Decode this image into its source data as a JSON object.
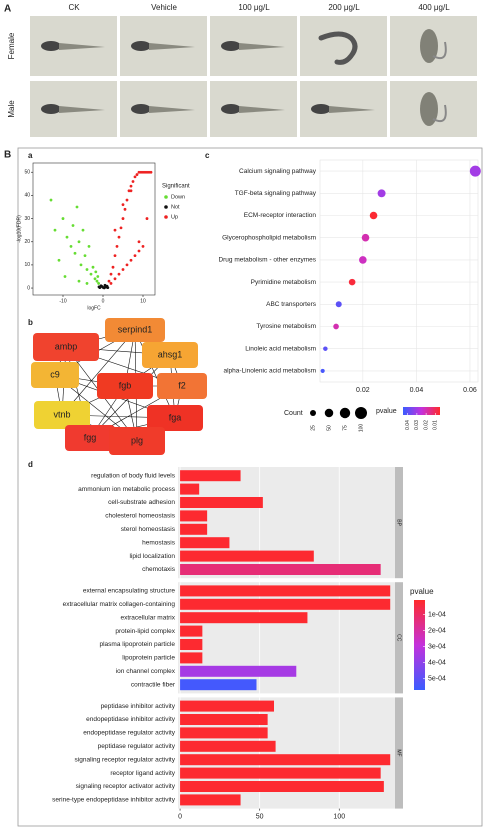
{
  "panel_a": {
    "label": "A",
    "columns": [
      "CK",
      "Vehicle",
      "100 μg/L",
      "200 μg/L",
      "400 μg/L"
    ],
    "rows": [
      "Female",
      "Male"
    ]
  },
  "panel_b": {
    "label": "B"
  },
  "network": {
    "label": "b",
    "nodes": [
      {
        "label": "serpind1",
        "color": "#f28a35"
      },
      {
        "label": "ambp",
        "color": "#f0432e"
      },
      {
        "label": "ahsg1",
        "color": "#f6a533"
      },
      {
        "label": "c9",
        "color": "#f3b534"
      },
      {
        "label": "fgb",
        "color": "#f03a22"
      },
      {
        "label": "f2",
        "color": "#f27435"
      },
      {
        "label": "vtnb",
        "color": "#efd233"
      },
      {
        "label": "fga",
        "color": "#ef3225"
      },
      {
        "label": "fgg",
        "color": "#f03a2f"
      },
      {
        "label": "plg",
        "color": "#f03b2a"
      }
    ]
  },
  "chart_data": [
    {
      "type": "scatter",
      "label": "a",
      "xlabel": "logFC",
      "ylabel": "-log10(FDR)",
      "legend_title": "Significant",
      "xlim": [
        -17.5,
        13
      ],
      "ylim": [
        -3,
        54
      ],
      "xticks": [
        -10,
        0,
        10
      ],
      "yticks": [
        0,
        10,
        20,
        30,
        40,
        50
      ],
      "series": [
        {
          "name": "Down",
          "color": "#66dd33",
          "x": [
            -13,
            -12,
            -11,
            -10,
            -9,
            -8,
            -7.5,
            -7,
            -6.5,
            -6,
            -5.5,
            -5,
            -4.5,
            -4,
            -3.5,
            -3,
            -2.5,
            -2,
            -1.8,
            -1.5,
            -1.3,
            -1.1,
            -9.5,
            -6,
            -4
          ],
          "values": [
            38,
            25,
            12,
            30,
            22,
            18,
            27,
            15,
            35,
            20,
            10,
            25,
            14,
            8,
            18,
            6,
            9,
            4,
            7,
            3,
            5,
            2,
            5,
            3,
            2
          ]
        },
        {
          "name": "Not",
          "color": "#111111",
          "x": [
            -1,
            -0.5,
            0,
            0.5,
            1,
            -0.8,
            0.3,
            0.8,
            -0.3,
            1.2
          ],
          "values": [
            0.5,
            1,
            0.3,
            1.2,
            0.8,
            0.2,
            0.1,
            0.4,
            0.7,
            0.2
          ]
        },
        {
          "name": "Up",
          "color": "#ee2222",
          "x": [
            1.5,
            2,
            2.5,
            3,
            3.5,
            4,
            4.5,
            5,
            5.5,
            6,
            6.5,
            7,
            7.5,
            8,
            8.5,
            9,
            9.5,
            10,
            10.5,
            11,
            11.5,
            12,
            2,
            3,
            4,
            5,
            6,
            7,
            8,
            9,
            10,
            3,
            5,
            7,
            9,
            11
          ],
          "values": [
            3,
            6,
            9,
            14,
            18,
            22,
            26,
            30,
            34,
            38,
            42,
            44,
            46,
            48,
            49,
            50,
            50,
            50,
            50,
            50,
            50,
            50,
            2,
            4,
            6,
            8,
            10,
            12,
            14,
            16,
            18,
            25,
            36,
            42,
            20,
            30
          ]
        }
      ]
    },
    {
      "type": "dot",
      "label": "c",
      "categories": [
        "Calcium signaling pathway",
        "TGF-beta signaling pathway",
        "ECM-receptor interaction",
        "Glycerophospholipid metabolism",
        "Drug metabolism - other enzymes",
        "Pyrimidine metabolism",
        "ABC transporters",
        "Tyrosine metabolism",
        "Linoleic acid metabolism",
        "alpha-Linolenic acid metabolism"
      ],
      "values": [
        0.062,
        0.027,
        0.024,
        0.021,
        0.02,
        0.016,
        0.011,
        0.01,
        0.006,
        0.005
      ],
      "counts": [
        84,
        44,
        40,
        40,
        40,
        30,
        25,
        22,
        14,
        12
      ],
      "pvalues": [
        0.03,
        0.03,
        0.006,
        0.02,
        0.022,
        0.007,
        0.04,
        0.02,
        0.04,
        0.043
      ],
      "xlim": [
        0.004,
        0.063
      ],
      "xticks": [
        0.02,
        0.04,
        0.06
      ],
      "size_legend": {
        "title": "Count",
        "values": [
          25,
          50,
          75,
          100
        ]
      },
      "color_legend": {
        "title": "pvalue",
        "ticks": [
          0.04,
          0.03,
          0.02,
          0.01
        ],
        "range": [
          0.005,
          0.045
        ],
        "colors": [
          "#ff2a2a",
          "#c431dc",
          "#3a5cff"
        ]
      }
    },
    {
      "type": "bar",
      "label": "d",
      "xlim": [
        -1.3,
        135
      ],
      "xticks": [
        0,
        50,
        100
      ],
      "facets": [
        {
          "name": "BP",
          "categories": [
            "regulation of body fluid levels",
            "ammonium ion metabolic process",
            "cell-substrate adhesion",
            "cholesterol homeostasis",
            "sterol homeostasis",
            "hemostasis",
            "lipid localization",
            "chemotaxis"
          ],
          "values": [
            38,
            12,
            52,
            17,
            17,
            31,
            84,
            126
          ],
          "pvalues": [
            2e-05,
            2e-05,
            2e-05,
            2e-05,
            2e-05,
            2e-05,
            2e-05,
            0.00013
          ]
        },
        {
          "name": "CC",
          "categories": [
            "external encapsulating structure",
            "extracellular matrix collagen-containing",
            "extracellular matrix",
            "protein-lipid complex",
            "plasma lipoprotein particle",
            "lipoprotein particle",
            "ion channel complex",
            "contractile fiber"
          ],
          "values": [
            132,
            132,
            80,
            14,
            14,
            14,
            73,
            48
          ],
          "pvalues": [
            2e-05,
            2e-05,
            2e-05,
            2e-05,
            2e-05,
            2e-05,
            0.00035,
            0.00055
          ]
        },
        {
          "name": "MF",
          "categories": [
            "peptidase inhibitor activity",
            "endopeptidase inhibitor activity",
            "endopeptidase regulator activity",
            "peptidase regulator activity",
            "signaling receptor regulator activity",
            "receptor ligand activity",
            "signaling receptor activator activity",
            "serine-type endopeptidase inhibitor activity"
          ],
          "values": [
            59,
            55,
            55,
            60,
            132,
            126,
            128,
            38
          ],
          "pvalues": [
            2e-05,
            2e-05,
            2e-05,
            2e-05,
            2e-05,
            2e-05,
            2e-05,
            2e-05
          ]
        }
      ],
      "color_legend": {
        "title": "pvalue",
        "ticks": [
          {
            "value": 0.0001,
            "label": "1e-04"
          },
          {
            "value": 0.0002,
            "label": "2e-04"
          },
          {
            "value": 0.0003,
            "label": "3e-04"
          },
          {
            "value": 0.0004,
            "label": "4e-04"
          },
          {
            "value": 0.0005,
            "label": "5e-04"
          }
        ],
        "range": [
          1e-05,
          0.00057
        ],
        "colors": [
          "#ff2a2a",
          "#c431dc",
          "#3a5cff"
        ]
      }
    }
  ]
}
